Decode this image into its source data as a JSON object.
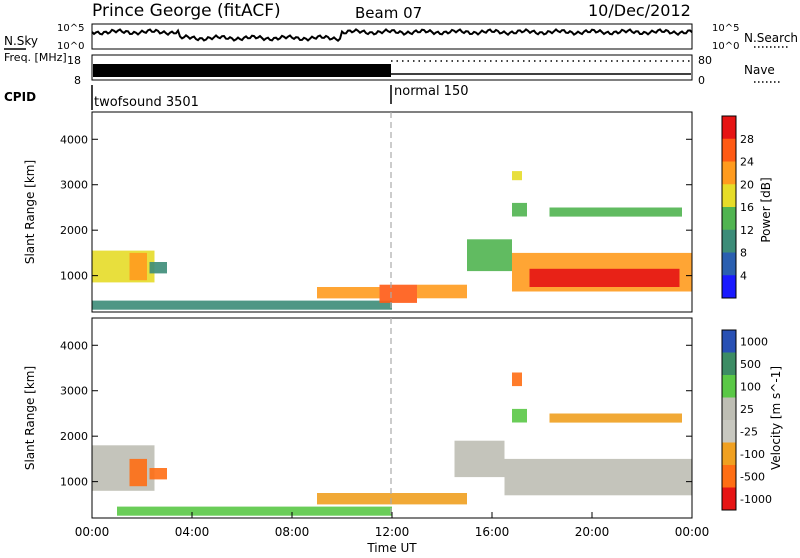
{
  "header": {
    "title": "Prince George (fitACF)",
    "beam": "Beam 07",
    "date": "10/Dec/2012"
  },
  "colors": {
    "power_scale": [
      "#1a1aff",
      "#2a5fb0",
      "#3c8c78",
      "#50b450",
      "#e6dc28",
      "#ff9b1e",
      "#ff5a14",
      "#e61414"
    ],
    "velocity_scale": [
      "#2850b4",
      "#3c8c64",
      "#5ac846",
      "#bebeb4",
      "#c8c8c0",
      "#f0a020",
      "#ff6e14",
      "#e61414"
    ],
    "divider": "#aaaaaa"
  },
  "chart_data": [
    {
      "type": "line",
      "name": "noise_panel",
      "left_label": "N.Sky",
      "right_label": "N.Search",
      "left_ticks": [
        "10^5",
        "10^0"
      ],
      "right_ticks": [
        "10^5",
        "10^0"
      ],
      "note": "trace shown as heavy black line near top of panel across full day"
    },
    {
      "type": "line",
      "name": "freq_nave_panel",
      "left_label": "Freq. [MHz]",
      "right_label": "Nave",
      "left_ticks": [
        18,
        8
      ],
      "right_ticks": [
        80,
        0
      ],
      "segments": [
        {
          "from_hour": 0,
          "to_hour": 12,
          "style": "dense"
        },
        {
          "from_hour": 12,
          "to_hour": 24,
          "style": "line-with-dots"
        }
      ]
    },
    {
      "type": "table",
      "name": "cpid_panel",
      "label": "CPID",
      "programs": [
        {
          "name": "twofsound 3501",
          "start_hour": 0
        },
        {
          "name": "normal 150",
          "start_hour": 12
        }
      ]
    },
    {
      "type": "heatmap",
      "name": "power_panel",
      "ylabel": "Slant Range [km]",
      "yticks": [
        1000,
        2000,
        3000,
        4000
      ],
      "ylim": [
        200,
        4600
      ],
      "xlim": [
        0,
        24
      ],
      "colorbar_label": "Power [dB]",
      "colorbar_ticks": [
        4,
        8,
        12,
        16,
        20,
        24,
        28
      ],
      "colorbar_range": [
        0,
        32
      ],
      "regions": [
        {
          "t0": 0.0,
          "t1": 2.5,
          "r0": 850,
          "r1": 1550,
          "level": 4
        },
        {
          "t0": 1.5,
          "t1": 2.2,
          "r0": 900,
          "r1": 1500,
          "level": 5
        },
        {
          "t0": 2.3,
          "t1": 3.0,
          "r0": 1050,
          "r1": 1300,
          "level": 2
        },
        {
          "t0": 0.0,
          "t1": 12.0,
          "r0": 250,
          "r1": 450,
          "level": 2
        },
        {
          "t0": 9.0,
          "t1": 11.5,
          "r0": 500,
          "r1": 750,
          "level": 5
        },
        {
          "t0": 11.5,
          "t1": 13.0,
          "r0": 400,
          "r1": 800,
          "level": 6
        },
        {
          "t0": 13.0,
          "t1": 15.0,
          "r0": 500,
          "r1": 800,
          "level": 5
        },
        {
          "t0": 15.0,
          "t1": 16.8,
          "r0": 1100,
          "r1": 1800,
          "level": 3
        },
        {
          "t0": 16.8,
          "t1": 24.0,
          "r0": 650,
          "r1": 1500,
          "level": 5
        },
        {
          "t0": 17.5,
          "t1": 23.5,
          "r0": 750,
          "r1": 1150,
          "level": 7
        },
        {
          "t0": 16.8,
          "t1": 17.4,
          "r0": 2300,
          "r1": 2600,
          "level": 3
        },
        {
          "t0": 18.3,
          "t1": 23.6,
          "r0": 2300,
          "r1": 2500,
          "level": 3
        },
        {
          "t0": 16.8,
          "t1": 17.2,
          "r0": 3100,
          "r1": 3300,
          "level": 4
        }
      ]
    },
    {
      "type": "heatmap",
      "name": "velocity_panel",
      "ylabel": "Slant Range [km]",
      "yticks": [
        1000,
        2000,
        3000,
        4000
      ],
      "ylim": [
        200,
        4600
      ],
      "xlim": [
        0,
        24
      ],
      "xticks": [
        "00:00",
        "04:00",
        "08:00",
        "12:00",
        "16:00",
        "20:00",
        "00:00"
      ],
      "xlabel": "Time UT",
      "colorbar_label": "Velocity [m s^-1]",
      "colorbar_ticks": [
        1000,
        500,
        100,
        25,
        -25,
        -100,
        -500,
        -1000
      ],
      "regions": [
        {
          "t0": 0.0,
          "t1": 2.5,
          "r0": 800,
          "r1": 1800,
          "level": 3
        },
        {
          "t0": 1.5,
          "t1": 2.2,
          "r0": 900,
          "r1": 1500,
          "level": 6
        },
        {
          "t0": 2.3,
          "t1": 3.0,
          "r0": 1050,
          "r1": 1300,
          "level": 6
        },
        {
          "t0": 1.0,
          "t1": 12.0,
          "r0": 250,
          "r1": 450,
          "level": 2
        },
        {
          "t0": 9.0,
          "t1": 15.0,
          "r0": 500,
          "r1": 750,
          "level": 5
        },
        {
          "t0": 14.5,
          "t1": 16.5,
          "r0": 1100,
          "r1": 1900,
          "level": 3
        },
        {
          "t0": 16.5,
          "t1": 24.0,
          "r0": 700,
          "r1": 1500,
          "level": 3
        },
        {
          "t0": 16.8,
          "t1": 17.4,
          "r0": 2300,
          "r1": 2600,
          "level": 2
        },
        {
          "t0": 18.3,
          "t1": 23.6,
          "r0": 2300,
          "r1": 2500,
          "level": 5
        },
        {
          "t0": 16.8,
          "t1": 17.2,
          "r0": 3100,
          "r1": 3400,
          "level": 6
        }
      ]
    }
  ]
}
